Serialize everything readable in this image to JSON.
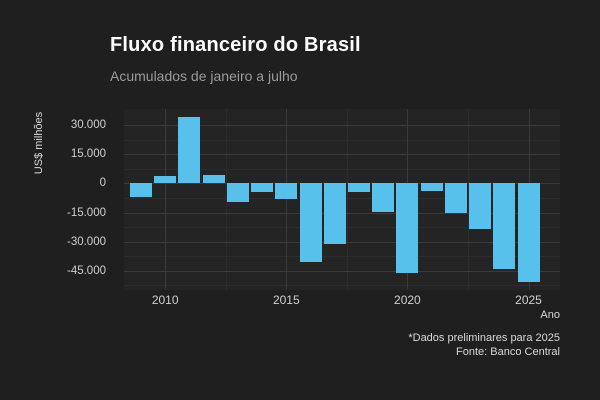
{
  "title": "Fluxo financeiro do Brasil",
  "subtitle": "Acumulados de janeiro a julho",
  "caption": {
    "line1": "*Dados preliminares para 2025",
    "line2": "Fonte: Banco Central"
  },
  "colors": {
    "background": "#1F1F1F",
    "panel": "#242424",
    "grid_major": "#3A3A3A",
    "grid_minor": "#2C2C2C",
    "bar": "#57C1EB",
    "title": "#FFFFFF",
    "subtitle": "#9B9B9B",
    "tick_text": "#CFCFCF",
    "axis_text": "#D9D9D9"
  },
  "chart_data": {
    "type": "bar",
    "title": "Fluxo financeiro do Brasil",
    "subtitle": "Acumulados de janeiro a julho",
    "xlabel": "Ano",
    "ylabel": "US$ milhões",
    "categories": [
      2009,
      2010,
      2011,
      2012,
      2013,
      2014,
      2015,
      2016,
      2017,
      2018,
      2019,
      2020,
      2021,
      2022,
      2023,
      2024,
      2025
    ],
    "values": [
      -6900,
      3800,
      34000,
      4100,
      -9500,
      -4400,
      -8200,
      -40500,
      -31400,
      -4700,
      -15000,
      -46300,
      -4100,
      -15400,
      -23600,
      -44300,
      -50700
    ],
    "unit": "US$ milhões",
    "bar_color": "#57C1EB",
    "grid": "on",
    "legend": "none",
    "xlim": [
      2008.3,
      2026.3
    ],
    "ylim": [
      -54900,
      38250
    ],
    "x_ticks": [
      {
        "value": 2010,
        "label": "2010"
      },
      {
        "value": 2015,
        "label": "2015"
      },
      {
        "value": 2020,
        "label": "2020"
      },
      {
        "value": 2025,
        "label": "2025"
      }
    ],
    "x_minor_ticks": [
      2012.5,
      2017.5,
      2022.5
    ],
    "y_ticks": [
      {
        "value": 30000,
        "label": "30.000"
      },
      {
        "value": 15000,
        "label": "15.000"
      },
      {
        "value": 0,
        "label": "0"
      },
      {
        "value": -15000,
        "label": "-15.000"
      },
      {
        "value": -30000,
        "label": "-30.000"
      },
      {
        "value": -45000,
        "label": "-45.000"
      }
    ],
    "y_minor_ticks": [
      22500,
      7500,
      -7500,
      -22500,
      -37500,
      -52500
    ]
  }
}
